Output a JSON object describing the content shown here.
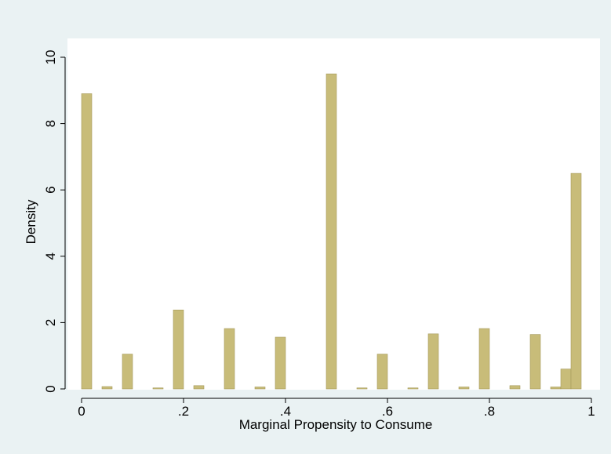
{
  "chart_data": {
    "type": "bar",
    "title": "",
    "xlabel": "Marginal Propensity to Consume",
    "ylabel": "Density",
    "xlim": [
      0,
      1
    ],
    "ylim": [
      0,
      10
    ],
    "bin_width": 0.02,
    "xticks": [
      {
        "value": 0,
        "label": "0"
      },
      {
        "value": 0.2,
        "label": ".2"
      },
      {
        "value": 0.4,
        "label": ".4"
      },
      {
        "value": 0.6,
        "label": ".6"
      },
      {
        "value": 0.8,
        "label": ".8"
      },
      {
        "value": 1,
        "label": "1"
      }
    ],
    "yticks": [
      {
        "value": 0,
        "label": "0"
      },
      {
        "value": 2,
        "label": "2"
      },
      {
        "value": 4,
        "label": "4"
      },
      {
        "value": 6,
        "label": "6"
      },
      {
        "value": 8,
        "label": "8"
      },
      {
        "value": 10,
        "label": "10"
      }
    ],
    "bins": [
      {
        "x": 0.0,
        "density": 8.9
      },
      {
        "x": 0.04,
        "density": 0.07
      },
      {
        "x": 0.08,
        "density": 1.05
      },
      {
        "x": 0.14,
        "density": 0.03
      },
      {
        "x": 0.18,
        "density": 2.38
      },
      {
        "x": 0.22,
        "density": 0.1
      },
      {
        "x": 0.28,
        "density": 1.82
      },
      {
        "x": 0.34,
        "density": 0.06
      },
      {
        "x": 0.38,
        "density": 1.56
      },
      {
        "x": 0.48,
        "density": 9.5
      },
      {
        "x": 0.54,
        "density": 0.03
      },
      {
        "x": 0.58,
        "density": 1.05
      },
      {
        "x": 0.64,
        "density": 0.03
      },
      {
        "x": 0.68,
        "density": 1.66
      },
      {
        "x": 0.74,
        "density": 0.06
      },
      {
        "x": 0.78,
        "density": 1.82
      },
      {
        "x": 0.84,
        "density": 0.1
      },
      {
        "x": 0.88,
        "density": 1.64
      },
      {
        "x": 0.92,
        "density": 0.06
      },
      {
        "x": 0.94,
        "density": 0.6
      },
      {
        "x": 0.96,
        "density": 6.5
      }
    ],
    "grid": false,
    "legend": "none",
    "bar_color": "#c8bc79",
    "bar_edge_color": "#a59a5a",
    "plot_background": "#ffffff",
    "page_background": "#eaf2f3"
  }
}
